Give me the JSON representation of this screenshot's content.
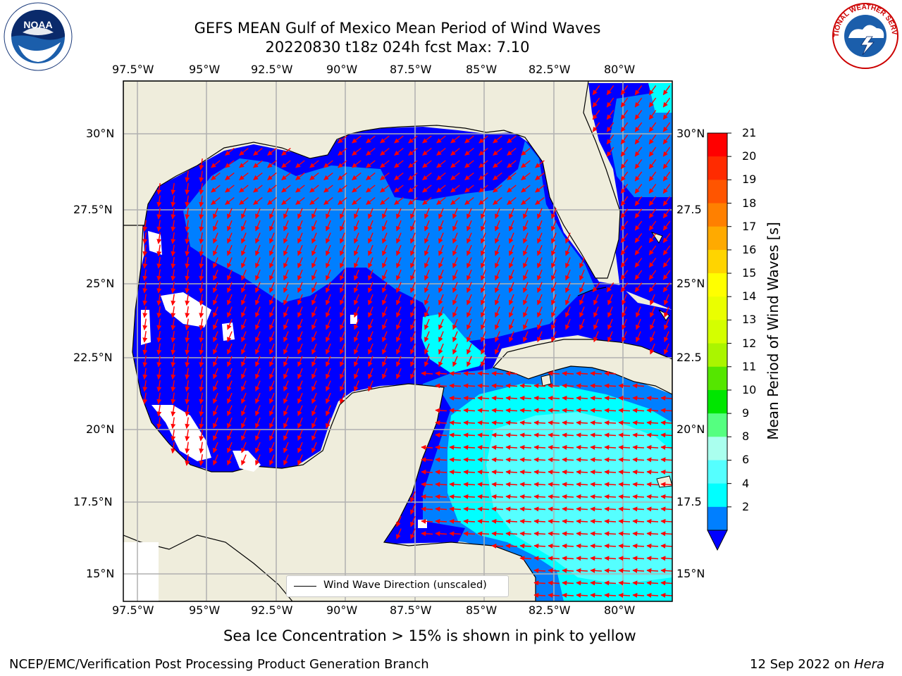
{
  "title": {
    "line1": "GEFS MEAN Gulf of Mexico Mean Period of Wind Waves",
    "line2": "20220830 t18z 024h fcst   Max: 7.10"
  },
  "logos": {
    "left": {
      "name": "noaa-logo",
      "text": "NOAA"
    },
    "right": {
      "name": "nws-logo",
      "text": "NATIONAL WEATHER SERVICE"
    }
  },
  "map": {
    "lon_range": [
      -98.5,
      -78.75
    ],
    "lat_range": [
      14.0,
      31.75
    ],
    "lon_labels": [
      "97.5°W",
      "95°W",
      "92.5°W",
      "90°W",
      "87.5°W",
      "85°W",
      "82.5°W",
      "80°W"
    ],
    "lat_labels_left": [
      "30°N",
      "27.5°N",
      "25°N",
      "22.5°N",
      "20°N",
      "17.5°N",
      "15°N"
    ],
    "lat_labels_right": [
      "30°N",
      "27.5",
      "25°N",
      "22.5",
      "20°N",
      "17.5",
      "15°N"
    ],
    "land_color": "#efeddc",
    "grid": true,
    "legend": {
      "label": "Wind Wave Direction (unscaled)",
      "position": "bottom-right"
    },
    "arrow_color": "#ff0000"
  },
  "colorbar": {
    "label": "Mean Period of Wind Waves [s]",
    "ticks": [
      "21",
      "20",
      "19",
      "18",
      "17",
      "16",
      "15",
      "14",
      "13",
      "12",
      "11",
      "10",
      "9",
      "8",
      "6",
      "4",
      "2"
    ],
    "colors": [
      "#ff0000",
      "#ff2b00",
      "#ff5500",
      "#ff8000",
      "#ffaa00",
      "#ffd400",
      "#ffff00",
      "#eaff00",
      "#d4ff00",
      "#aaf500",
      "#55e600",
      "#00e600",
      "#55ff80",
      "#aaffee",
      "#55ffff",
      "#00ffff",
      "#007fff"
    ],
    "under_color": "#0000ff"
  },
  "notes": {
    "sea_ice": "Sea Ice Concentration > 15% is shown in pink to yellow"
  },
  "footer": {
    "left": "NCEP/EMC/Verification Post Processing Product Generation Branch",
    "right_date": "12 Sep 2022 on ",
    "right_machine": "Hera"
  }
}
